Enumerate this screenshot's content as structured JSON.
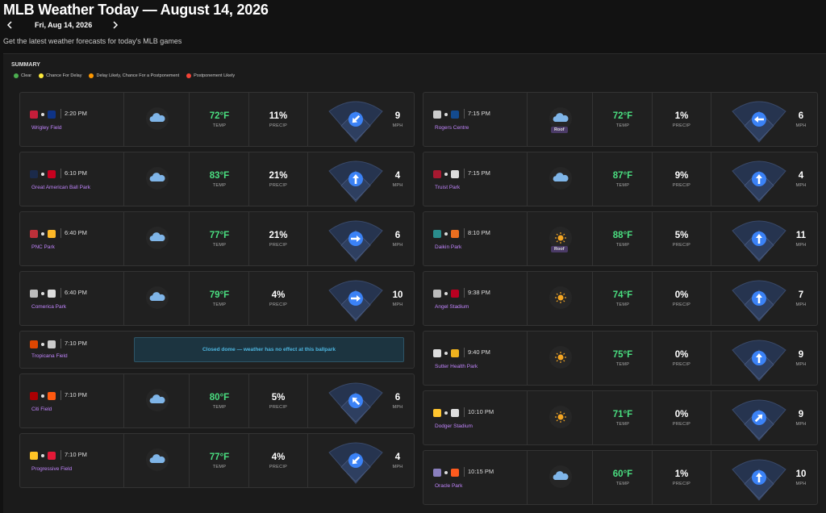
{
  "header": {
    "title": "MLB Weather Today — August 14, 2026",
    "date": "Fri, Aug 14, 2026",
    "subtitle": "Get the latest weather forecasts for today's MLB games"
  },
  "summary": {
    "title": "SUMMARY",
    "legend": [
      {
        "label": "Clear",
        "color": "#4caf50"
      },
      {
        "label": "Chance For Delay",
        "color": "#ffeb3b"
      },
      {
        "label": "Delay Likely, Chance For a Postponement",
        "color": "#ff9800"
      },
      {
        "label": "Postponement Likely",
        "color": "#f44336"
      }
    ]
  },
  "labels": {
    "temp": "TEMP",
    "precip": "PRECIP",
    "wind": "MPH"
  },
  "columns": [
    [
      {
        "time": "2:20 PM",
        "park": "Wrigley Field",
        "away_color": "#c41e3a",
        "home_color": "#0e3386",
        "weather": "cloud",
        "temp": "72°F",
        "precip": "11%",
        "wind": "9",
        "wind_arrow": "sw"
      },
      {
        "time": "6:10 PM",
        "park": "Great American Ball Park",
        "away_color": "#1b2a4a",
        "home_color": "#c6011f",
        "weather": "cloud",
        "temp": "83°F",
        "precip": "21%",
        "wind": "4",
        "wind_arrow": "n"
      },
      {
        "time": "6:40 PM",
        "park": "PNC Park",
        "away_color": "#bd3039",
        "home_color": "#fdb827",
        "weather": "cloud",
        "temp": "77°F",
        "precip": "21%",
        "wind": "6",
        "wind_arrow": "e"
      },
      {
        "time": "6:40 PM",
        "park": "Comerica Park",
        "away_color": "#bbbbbb",
        "home_color": "#dddddd",
        "weather": "cloud",
        "temp": "79°F",
        "precip": "4%",
        "wind": "10",
        "wind_arrow": "e"
      },
      {
        "time": "7:10 PM",
        "park": "Tropicana Field",
        "away_color": "#df4601",
        "home_color": "#cccccc",
        "note": "Closed dome — weather has no effect at this ballpark"
      },
      {
        "time": "7:10 PM",
        "park": "Citi Field",
        "away_color": "#ab0003",
        "home_color": "#ff5910",
        "weather": "cloud",
        "temp": "80°F",
        "precip": "5%",
        "wind": "6",
        "wind_arrow": "nw"
      },
      {
        "time": "7:10 PM",
        "park": "Progressive Field",
        "away_color": "#ffc425",
        "home_color": "#e31937",
        "weather": "cloud",
        "temp": "77°F",
        "precip": "4%",
        "wind": "4",
        "wind_arrow": "sw"
      }
    ],
    [
      {
        "time": "7:15 PM",
        "park": "Rogers Centre",
        "away_color": "#cccccc",
        "home_color": "#134a8e",
        "weather": "cloud",
        "roof": "Roof",
        "temp": "72°F",
        "precip": "1%",
        "wind": "6",
        "wind_arrow": "w"
      },
      {
        "time": "7:15 PM",
        "park": "Truist Park",
        "away_color": "#a71930",
        "home_color": "#dddddd",
        "weather": "cloud",
        "temp": "87°F",
        "precip": "9%",
        "wind": "4",
        "wind_arrow": "n"
      },
      {
        "time": "8:10 PM",
        "park": "Daikin Park",
        "away_color": "#2a8c8c",
        "home_color": "#eb6e1f",
        "weather": "sun",
        "roof": "Roof",
        "temp": "88°F",
        "precip": "5%",
        "wind": "11",
        "wind_arrow": "n"
      },
      {
        "time": "9:38 PM",
        "park": "Angel Stadium",
        "away_color": "#bbbbbb",
        "home_color": "#ba0021",
        "weather": "sun",
        "temp": "74°F",
        "precip": "0%",
        "wind": "7",
        "wind_arrow": "n"
      },
      {
        "time": "9:40 PM",
        "park": "Sutter Health Park",
        "away_color": "#dddddd",
        "home_color": "#efb21e",
        "weather": "sun",
        "temp": "75°F",
        "precip": "0%",
        "wind": "9",
        "wind_arrow": "n"
      },
      {
        "time": "10:10 PM",
        "park": "Dodger Stadium",
        "away_color": "#ffc52f",
        "home_color": "#dddddd",
        "weather": "sun",
        "temp": "71°F",
        "precip": "0%",
        "wind": "9",
        "wind_arrow": "ne"
      },
      {
        "time": "10:15 PM",
        "park": "Oracle Park",
        "away_color": "#8a7fbe",
        "home_color": "#fd5a1e",
        "weather": "cloud",
        "temp": "60°F",
        "precip": "1%",
        "wind": "10",
        "wind_arrow": "n"
      }
    ]
  ]
}
